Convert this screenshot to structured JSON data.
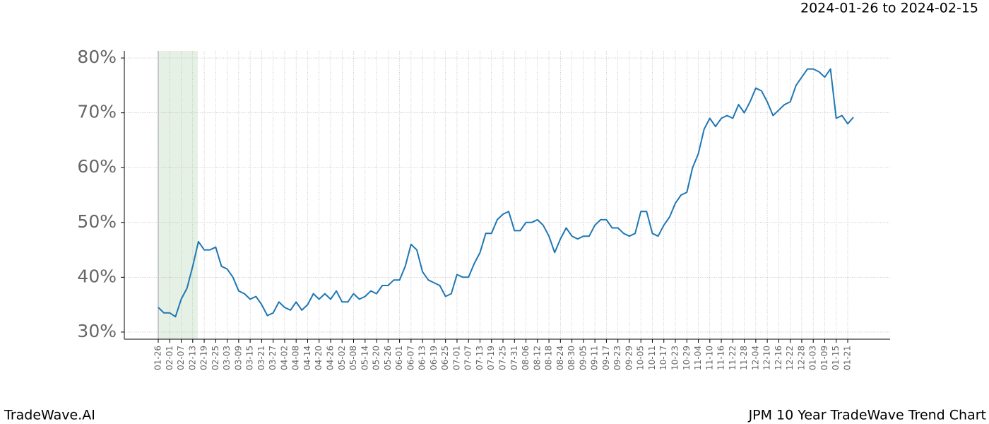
{
  "chart_data": {
    "type": "line",
    "title": "2024-01-26 to 2024-02-15",
    "brand": "TradeWave.AI",
    "subtitle": "JPM 10 Year TradeWave Trend Chart",
    "categories": [
      "01-26",
      null,
      "02-01",
      null,
      "02-07",
      null,
      "02-13",
      null,
      "02-19",
      null,
      "02-25",
      null,
      "03-03",
      null,
      "03-09",
      null,
      "03-15",
      null,
      "03-21",
      null,
      "03-27",
      null,
      "04-02",
      null,
      "04-08",
      null,
      "04-14",
      null,
      "04-20",
      null,
      "04-26",
      null,
      "05-02",
      null,
      "05-08",
      null,
      "05-14",
      null,
      "05-20",
      null,
      "05-26",
      null,
      "06-01",
      null,
      "06-07",
      null,
      "06-13",
      null,
      "06-19",
      null,
      "06-25",
      null,
      "07-01",
      null,
      "07-07",
      null,
      "07-13",
      null,
      "07-19",
      null,
      "07-25",
      null,
      "07-31",
      null,
      "08-06",
      null,
      "08-12",
      null,
      "08-18",
      null,
      "08-24",
      null,
      "08-30",
      null,
      "09-05",
      null,
      "09-11",
      null,
      "09-17",
      null,
      "09-23",
      null,
      "09-29",
      null,
      "10-05",
      null,
      "10-11",
      null,
      "10-17",
      null,
      "10-23",
      null,
      "10-29",
      null,
      "11-04",
      null,
      "11-10",
      null,
      "11-16",
      null,
      "11-22",
      null,
      "11-28",
      null,
      "12-04",
      null,
      "12-10",
      null,
      "12-16",
      null,
      "12-22",
      null,
      "12-28",
      null,
      "01-03",
      null,
      "01-09",
      null,
      "01-15",
      null,
      "01-21",
      null
    ],
    "series": [
      {
        "color": "#1f77b4",
        "values": [
          34.5,
          33.5,
          33.5,
          32.8,
          36,
          38,
          42,
          46.5,
          45,
          45,
          45.5,
          42,
          41.5,
          40,
          37.5,
          37,
          36,
          36.5,
          35,
          33,
          33.5,
          35.5,
          34.5,
          34,
          35.5,
          34,
          35,
          37,
          36,
          37,
          36,
          37.5,
          35.5,
          35.5,
          37,
          36,
          36.5,
          37.5,
          37,
          38.5,
          38.5,
          39.5,
          39.5,
          42,
          46,
          45,
          41,
          39.5,
          39,
          38.5,
          36.5,
          37,
          40.5,
          40,
          40,
          42.5,
          44.5,
          48,
          48,
          50.5,
          51.5,
          52,
          48.5,
          48.5,
          50,
          50,
          50.5,
          49.5,
          47.5,
          44.5,
          47,
          49,
          47.5,
          47,
          47.5,
          47.5,
          49.5,
          50.5,
          50.5,
          49,
          49,
          48,
          47.5,
          48,
          52,
          52,
          48,
          47.5,
          49.5,
          51,
          53.5,
          55,
          55.5,
          60,
          62.5,
          67,
          69,
          67.5,
          69,
          69.5,
          69,
          71.5,
          70,
          72,
          74.5,
          74,
          72,
          69.5,
          70.5,
          71.5,
          72,
          75,
          76.5,
          78,
          78,
          77.5,
          76.5,
          78,
          69,
          69.5,
          68,
          69.2
        ]
      }
    ],
    "ylim": [
      28.7,
      81.3
    ],
    "yticks": [
      {
        "value": 30,
        "label": "30%"
      },
      {
        "value": 40,
        "label": "40%"
      },
      {
        "value": 50,
        "label": "50%"
      },
      {
        "value": 60,
        "label": "60%"
      },
      {
        "value": 70,
        "label": "70%"
      },
      {
        "value": 80,
        "label": "80%"
      }
    ],
    "grid": true
  }
}
